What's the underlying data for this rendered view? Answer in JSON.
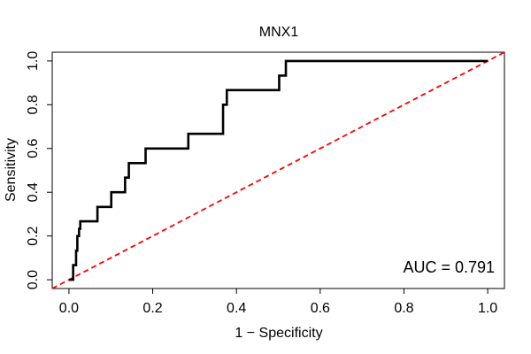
{
  "chart_data": {
    "type": "line",
    "title": "MNX1",
    "xlabel": "1 − Specificity",
    "ylabel": "Sensitivity",
    "xlim": [
      -0.04,
      1.04
    ],
    "ylim": [
      -0.04,
      1.04
    ],
    "xticks": [
      0.0,
      0.2,
      0.4,
      0.6,
      0.8,
      1.0
    ],
    "xtick_labels": [
      "0.0",
      "0.2",
      "0.4",
      "0.6",
      "0.8",
      "1.0"
    ],
    "yticks": [
      0.0,
      0.2,
      0.4,
      0.6,
      0.8,
      1.0
    ],
    "ytick_labels": [
      "0.0",
      "0.2",
      "0.4",
      "0.6",
      "0.8",
      "1.0"
    ],
    "grid": false,
    "annotation": "AUC = 0.791",
    "colors": {
      "roc": "#000000",
      "reference": "#ff0000"
    },
    "series": [
      {
        "style": "solid",
        "x": [
          0.0,
          0.01,
          0.01,
          0.017,
          0.017,
          0.02,
          0.02,
          0.024,
          0.024,
          0.027,
          0.027,
          0.068,
          0.068,
          0.101,
          0.101,
          0.134,
          0.134,
          0.143,
          0.143,
          0.183,
          0.183,
          0.285,
          0.285,
          0.368,
          0.368,
          0.377,
          0.377,
          0.502,
          0.502,
          0.518,
          0.518,
          1.0
        ],
        "y": [
          0.0,
          0.0,
          0.067,
          0.067,
          0.133,
          0.133,
          0.2,
          0.2,
          0.233,
          0.233,
          0.267,
          0.267,
          0.333,
          0.333,
          0.4,
          0.4,
          0.467,
          0.467,
          0.533,
          0.533,
          0.6,
          0.6,
          0.667,
          0.667,
          0.8,
          0.8,
          0.867,
          0.867,
          0.933,
          0.933,
          1.0,
          1.0
        ]
      },
      {
        "style": "dashed",
        "x": [
          -0.04,
          1.04
        ],
        "y": [
          -0.04,
          1.04
        ]
      }
    ]
  }
}
